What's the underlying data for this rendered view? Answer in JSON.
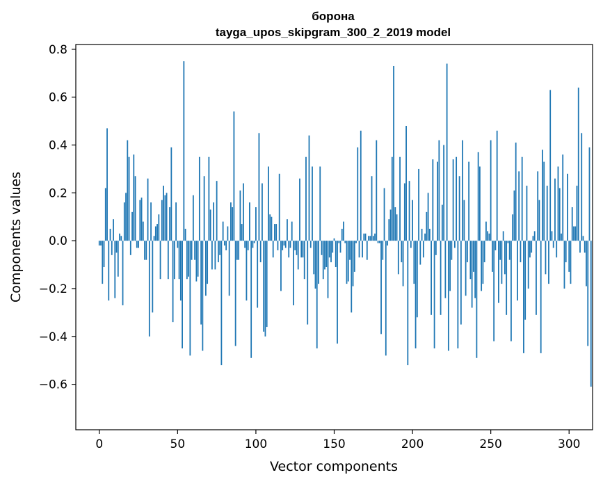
{
  "chart_data": {
    "type": "bar",
    "title": "борона",
    "subtitle": "tayga_upos_skipgram_300_2_2019 model",
    "xlabel": "Vector components",
    "ylabel": "Components values",
    "xlim": [
      -15,
      315
    ],
    "ylim": [
      -0.79,
      0.82
    ],
    "xticks": [
      0,
      50,
      100,
      150,
      200,
      250,
      300
    ],
    "yticks": [
      -0.6,
      -0.4,
      -0.2,
      0.0,
      0.2,
      0.4,
      0.6,
      0.8
    ],
    "xtick_labels": [
      "0",
      "50",
      "100",
      "150",
      "200",
      "250",
      "300"
    ],
    "ytick_labels": [
      "−0.6",
      "−0.4",
      "−0.2",
      "0.0",
      "0.2",
      "0.4",
      "0.6",
      "0.8"
    ],
    "grid": false,
    "bar_color": "#1f77b4",
    "values": [
      -0.02,
      -0.02,
      -0.18,
      -0.11,
      0.22,
      0.47,
      -0.25,
      0.05,
      -0.06,
      0.09,
      -0.24,
      -0.05,
      -0.15,
      0.03,
      0.02,
      -0.27,
      0.16,
      0.2,
      0.42,
      0.35,
      -0.06,
      0.12,
      0.36,
      0.27,
      -0.03,
      -0.03,
      0.17,
      0.18,
      0.08,
      -0.08,
      -0.08,
      0.26,
      -0.4,
      0.16,
      -0.3,
      0.02,
      0.06,
      0.07,
      0.11,
      -0.16,
      0.17,
      0.23,
      0.19,
      0.2,
      -0.16,
      0.14,
      0.39,
      -0.34,
      -0.16,
      0.16,
      -0.03,
      -0.16,
      -0.25,
      -0.45,
      0.75,
      0.05,
      -0.16,
      -0.15,
      -0.48,
      -0.08,
      0.19,
      -0.08,
      -0.17,
      -0.15,
      0.35,
      -0.35,
      -0.46,
      0.27,
      -0.23,
      -0.18,
      0.35,
      0.13,
      -0.12,
      0.16,
      -0.12,
      0.25,
      -0.09,
      -0.06,
      -0.52,
      0.08,
      -0.02,
      -0.04,
      0.06,
      -0.23,
      0.16,
      0.14,
      0.54,
      -0.44,
      -0.08,
      -0.08,
      0.21,
      0.07,
      0.24,
      -0.03,
      -0.25,
      -0.04,
      0.16,
      -0.49,
      -0.03,
      -0.01,
      0.14,
      -0.28,
      0.45,
      -0.09,
      0.24,
      -0.38,
      -0.4,
      -0.36,
      0.31,
      0.11,
      0.1,
      -0.07,
      0.07,
      0.07,
      -0.04,
      0.28,
      -0.21,
      -0.04,
      -0.02,
      -0.03,
      0.09,
      -0.07,
      -0.03,
      0.08,
      -0.27,
      -0.04,
      -0.06,
      -0.12,
      0.26,
      -0.07,
      -0.07,
      -0.16,
      0.35,
      -0.35,
      0.44,
      -0.03,
      0.31,
      -0.14,
      -0.2,
      -0.45,
      -0.18,
      0.31,
      -0.06,
      -0.16,
      -0.12,
      -0.11,
      -0.24,
      -0.07,
      -0.09,
      -0.05,
      0.01,
      -0.11,
      -0.43,
      -0.01,
      -0.05,
      0.05,
      0.08,
      -0.01,
      -0.18,
      -0.17,
      -0.08,
      -0.3,
      -0.19,
      -0.13,
      -0.01,
      0.39,
      -0.07,
      0.46,
      -0.07,
      0.03,
      0.03,
      -0.08,
      0.02,
      0.02,
      0.27,
      0.02,
      0.03,
      0.42,
      -0.01,
      -0.01,
      -0.39,
      -0.08,
      0.22,
      -0.48,
      -0.02,
      0.09,
      0.13,
      0.35,
      0.73,
      0.14,
      0.11,
      -0.14,
      0.35,
      -0.09,
      -0.19,
      0.24,
      0.48,
      -0.52,
      0.25,
      -0.03,
      0.17,
      -0.18,
      -0.45,
      -0.32,
      0.3,
      -0.1,
      0.05,
      -0.07,
      0.03,
      0.12,
      0.2,
      0.05,
      -0.31,
      0.34,
      -0.45,
      -0.06,
      0.33,
      0.42,
      -0.31,
      0.15,
      0.4,
      -0.24,
      0.74,
      -0.46,
      -0.21,
      -0.08,
      0.34,
      -0.03,
      0.35,
      -0.45,
      0.27,
      -0.35,
      0.42,
      0.17,
      -0.23,
      -0.09,
      0.33,
      -0.16,
      -0.28,
      -0.13,
      -0.24,
      -0.49,
      0.37,
      0.31,
      -0.21,
      -0.18,
      -0.09,
      0.08,
      0.04,
      0.03,
      0.42,
      -0.13,
      -0.42,
      -0.04,
      0.46,
      -0.26,
      -0.08,
      -0.18,
      0.04,
      -0.14,
      -0.31,
      -0.01,
      -0.08,
      -0.42,
      0.11,
      0.21,
      0.41,
      -0.25,
      0.29,
      -0.09,
      0.35,
      -0.47,
      -0.33,
      0.23,
      -0.2,
      -0.07,
      -0.05,
      0.02,
      0.04,
      -0.31,
      0.29,
      0.17,
      -0.47,
      0.38,
      0.33,
      -0.14,
      0.23,
      -0.18,
      0.63,
      0.04,
      -0.03,
      0.26,
      -0.07,
      0.31,
      0.22,
      0.03,
      0.36,
      -0.2,
      -0.09,
      0.28,
      -0.13,
      -0.18,
      0.14,
      0.06,
      0.06,
      0.23,
      0.64,
      -0.05,
      0.45,
      0.02,
      -0.05,
      -0.19,
      -0.44,
      0.39,
      -0.61
    ]
  }
}
